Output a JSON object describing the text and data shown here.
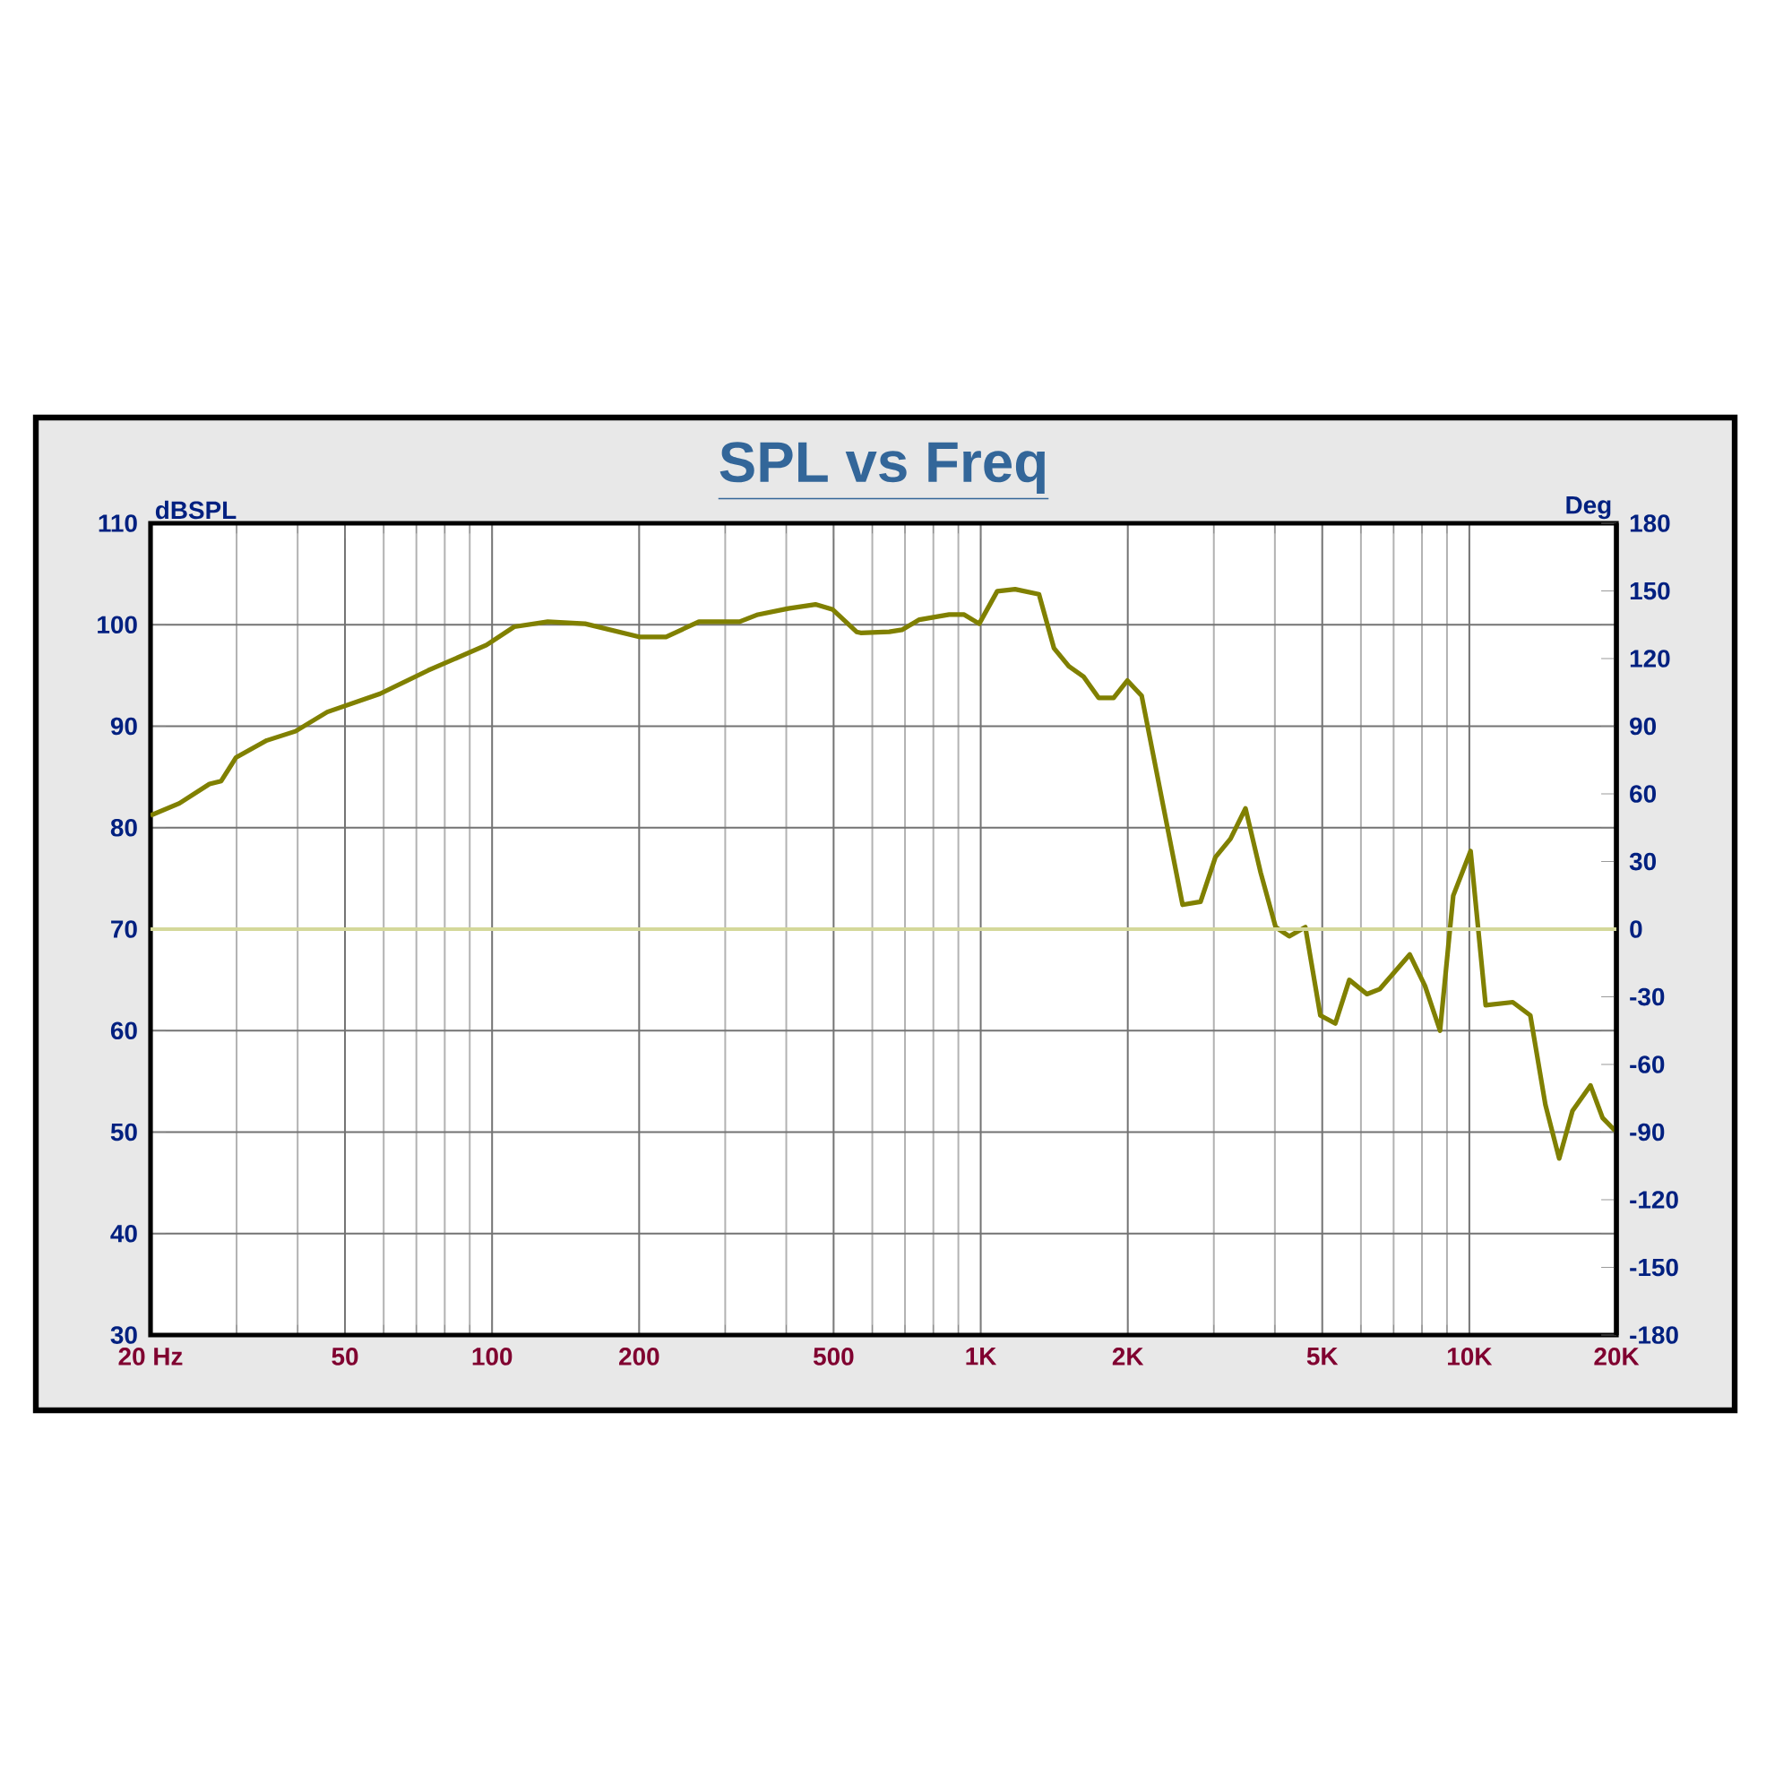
{
  "chart_data": {
    "type": "line",
    "title": "SPL vs Freq",
    "ylabel": "dBSPL",
    "y2label": "Deg",
    "log": "x",
    "grid": true,
    "marker": "none",
    "line_style": "solid",
    "x": [
      20,
      22.9,
      26.4,
      27.9,
      29.9,
      34.6,
      39.6,
      46.0,
      59.0,
      74.0,
      97.4,
      111,
      130,
      155,
      200,
      227,
      265,
      321,
      350,
      404,
      459,
      498,
      557,
      568,
      650,
      690,
      749,
      862,
      925,
      993,
      1081,
      1176,
      1316,
      1412,
      1515,
      1623,
      1743,
      1871,
      1996,
      2135,
      2589,
      2818,
      3023,
      3245,
      3483,
      3740,
      4014,
      4279,
      4617,
      4955,
      5318,
      5680,
      6173,
      6560,
      7553,
      8115,
      8710,
      9270,
      10060,
      10800,
      12270,
      13330,
      14310,
      15270,
      16260,
      17700,
      18740,
      20000
    ],
    "series": [
      {
        "color": "#808000",
        "values": [
          81.2,
          82.4,
          84.3,
          84.6,
          86.9,
          88.6,
          89.5,
          91.4,
          93.2,
          95.5,
          98.0,
          99.8,
          100.3,
          100.1,
          98.8,
          98.8,
          100.3,
          100.3,
          101.0,
          101.6,
          102.0,
          101.5,
          99.3,
          99.2,
          99.3,
          99.5,
          100.5,
          101.0,
          101.0,
          100.1,
          103.3,
          103.5,
          103.0,
          97.7,
          95.9,
          94.9,
          92.8,
          92.8,
          94.5,
          93.0,
          72.4,
          72.7,
          77.1,
          78.9,
          81.9,
          75.6,
          70.2,
          69.3,
          70.2,
          61.5,
          60.7,
          65.0,
          63.6,
          64.1,
          67.5,
          64.4,
          60.0,
          73.3,
          77.7,
          62.5,
          62.8,
          61.5,
          52.7,
          47.4,
          52.1,
          54.6,
          51.4,
          50.0
        ]
      }
    ],
    "xlim": [
      20,
      20000
    ],
    "xticks": [
      {
        "value": 20,
        "label": "20 Hz"
      },
      {
        "value": 30,
        "label": null
      },
      {
        "value": 40,
        "label": null
      },
      50,
      {
        "value": 60,
        "label": null
      },
      {
        "value": 70,
        "label": null
      },
      {
        "value": 80,
        "label": null
      },
      {
        "value": 90,
        "label": null
      },
      100,
      200,
      {
        "value": 300,
        "label": null
      },
      {
        "value": 400,
        "label": null
      },
      500,
      {
        "value": 600,
        "label": null
      },
      {
        "value": 700,
        "label": null
      },
      {
        "value": 800,
        "label": null
      },
      {
        "value": 900,
        "label": null
      },
      {
        "value": 1000,
        "label": "1K"
      },
      {
        "value": 2000,
        "label": "2K"
      },
      {
        "value": 3000,
        "label": null
      },
      {
        "value": 4000,
        "label": null
      },
      {
        "value": 5000,
        "label": "5K"
      },
      {
        "value": 6000,
        "label": null
      },
      {
        "value": 7000,
        "label": null
      },
      {
        "value": 8000,
        "label": null
      },
      {
        "value": 9000,
        "label": null
      },
      {
        "value": 10000,
        "label": "10K"
      },
      {
        "value": 20000,
        "label": "20K"
      }
    ],
    "ylim": [
      30,
      110
    ],
    "yticks": [
      30,
      40,
      50,
      60,
      70,
      80,
      90,
      100,
      110
    ],
    "y2lim": [
      -180,
      180
    ],
    "y2ticks": [
      -180,
      -150,
      -120,
      -90,
      -60,
      -30,
      0,
      30,
      60,
      90,
      120,
      150,
      180
    ],
    "ref_lines": [
      {
        "axis": "y2",
        "value": 0,
        "color": "#d4d89a"
      }
    ]
  }
}
